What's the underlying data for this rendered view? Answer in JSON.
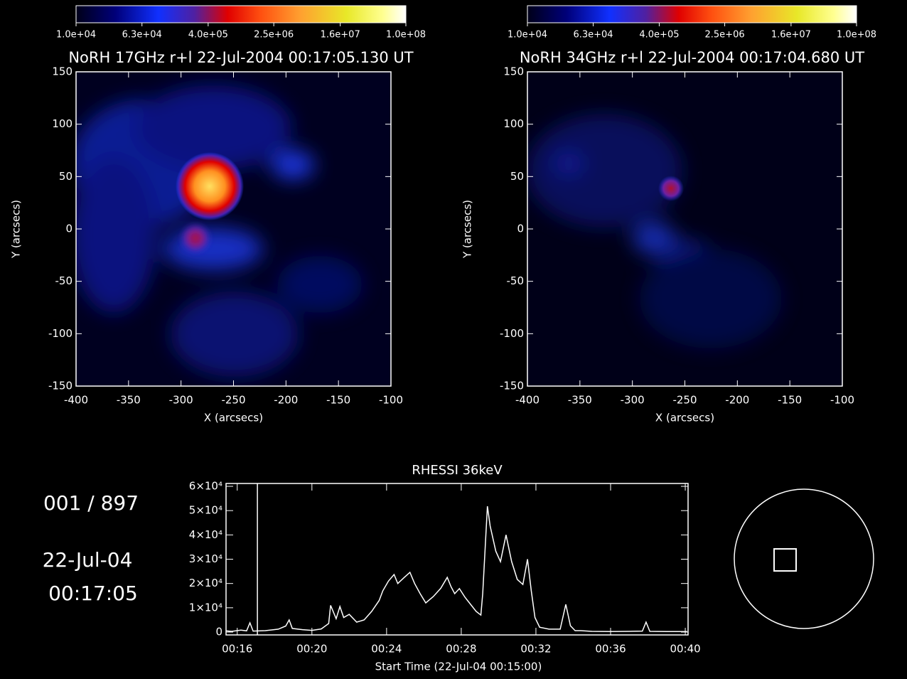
{
  "counter": "001 / 897",
  "date": "22-Jul-04",
  "time": "00:17:05",
  "chart_data": [
    {
      "type": "image",
      "title": "NoRH 17GHz r+l 22-Jul-2004 00:17:05.130 UT",
      "xlabel": "X (arcsecs)",
      "ylabel": "Y (arcsecs)",
      "xlim": [
        -400,
        -100
      ],
      "xticks": [
        -400,
        -350,
        -300,
        -250,
        -200,
        -150,
        -100
      ],
      "ylim": [
        -150,
        150
      ],
      "yticks": [
        -150,
        -100,
        -50,
        0,
        50,
        100,
        150
      ],
      "colorbar": {
        "log": true,
        "lim": [
          10000,
          100000000
        ],
        "ticks": [
          {
            "value": 10000,
            "label": "1.0e+04"
          },
          {
            "value": 63000,
            "label": "6.3e+04"
          },
          {
            "value": 400000,
            "label": "4.0e+05"
          },
          {
            "value": 2500000,
            "label": "2.5e+06"
          },
          {
            "value": 16000000,
            "label": "1.6e+07"
          },
          {
            "value": 100000000,
            "label": "1.0e+08"
          }
        ]
      }
    },
    {
      "type": "image",
      "title": "NoRH 34GHz r+l 22-Jul-2004 00:17:04.680 UT",
      "xlabel": "X (arcsecs)",
      "ylabel": "Y (arcsecs)",
      "xlim": [
        -400,
        -100
      ],
      "xticks": [
        -400,
        -350,
        -300,
        -250,
        -200,
        -150,
        -100
      ],
      "ylim": [
        -150,
        150
      ],
      "yticks": [
        -150,
        -100,
        -50,
        0,
        50,
        100,
        150
      ],
      "colorbar": {
        "log": true,
        "lim": [
          10000,
          100000000
        ],
        "ticks": [
          {
            "value": 10000,
            "label": "1.0e+04"
          },
          {
            "value": 63000,
            "label": "6.3e+04"
          },
          {
            "value": 400000,
            "label": "4.0e+05"
          },
          {
            "value": 2500000,
            "label": "2.5e+06"
          },
          {
            "value": 16000000,
            "label": "1.6e+07"
          },
          {
            "value": 100000000,
            "label": "1.0e+08"
          }
        ]
      }
    },
    {
      "type": "line",
      "title": "RHESSI 36keV",
      "xlabel": "Start Time (22-Jul-04 00:15:00)",
      "color": "#ffffff",
      "xlim": [
        15.4,
        40.15
      ],
      "xticks": [
        {
          "value": 16,
          "label": "00:16"
        },
        {
          "value": 20,
          "label": "00:20"
        },
        {
          "value": 24,
          "label": "00:24"
        },
        {
          "value": 28,
          "label": "00:28"
        },
        {
          "value": 32,
          "label": "00:32"
        },
        {
          "value": 36,
          "label": "00:36"
        },
        {
          "value": 40,
          "label": "00:40"
        }
      ],
      "ylim": [
        0,
        60000
      ],
      "yticks": [
        0,
        {
          "value": 10000,
          "label": "1×10⁴"
        },
        {
          "value": 20000,
          "label": "2×10⁴"
        },
        {
          "value": 30000,
          "label": "3×10⁴"
        },
        {
          "value": 40000,
          "label": "4×10⁴"
        },
        {
          "value": 50000,
          "label": "5×10⁴"
        },
        {
          "value": 60000,
          "label": "6×10⁴"
        }
      ],
      "cursor_x": 17.08,
      "x": [
        15.4,
        15.7,
        16.2,
        16.5,
        16.68,
        16.85,
        17.5,
        18.2,
        18.6,
        18.78,
        18.95,
        19.5,
        20.0,
        20.5,
        20.9,
        21.0,
        21.3,
        21.5,
        21.7,
        22.0,
        22.4,
        22.8,
        23.2,
        23.6,
        23.8,
        24.1,
        24.4,
        24.6,
        24.95,
        25.25,
        25.5,
        25.8,
        26.1,
        26.5,
        26.9,
        27.25,
        27.45,
        27.65,
        27.9,
        28.2,
        28.5,
        28.8,
        29.05,
        29.15,
        29.4,
        29.55,
        29.85,
        30.1,
        30.4,
        30.7,
        31.0,
        31.3,
        31.55,
        31.75,
        31.95,
        32.2,
        32.7,
        33.3,
        33.6,
        33.85,
        34.1,
        34.4,
        35.0,
        36.0,
        37.0,
        37.7,
        37.9,
        38.1,
        39.0,
        40.1
      ],
      "values": [
        500,
        300,
        800,
        500,
        3800,
        400,
        600,
        1200,
        2500,
        5000,
        1500,
        1000,
        700,
        1300,
        3500,
        11000,
        5500,
        10500,
        6000,
        7300,
        4100,
        5000,
        8500,
        13000,
        17000,
        21000,
        23700,
        20000,
        22500,
        24600,
        20000,
        15800,
        12000,
        14600,
        18000,
        22500,
        18700,
        15800,
        17900,
        14300,
        11400,
        8500,
        7000,
        15800,
        51800,
        43600,
        33300,
        29000,
        40000,
        29000,
        21700,
        19600,
        30000,
        17000,
        6000,
        2000,
        1200,
        1200,
        11400,
        2600,
        600,
        600,
        300,
        200,
        300,
        400,
        4100,
        300,
        200,
        200
      ]
    }
  ]
}
